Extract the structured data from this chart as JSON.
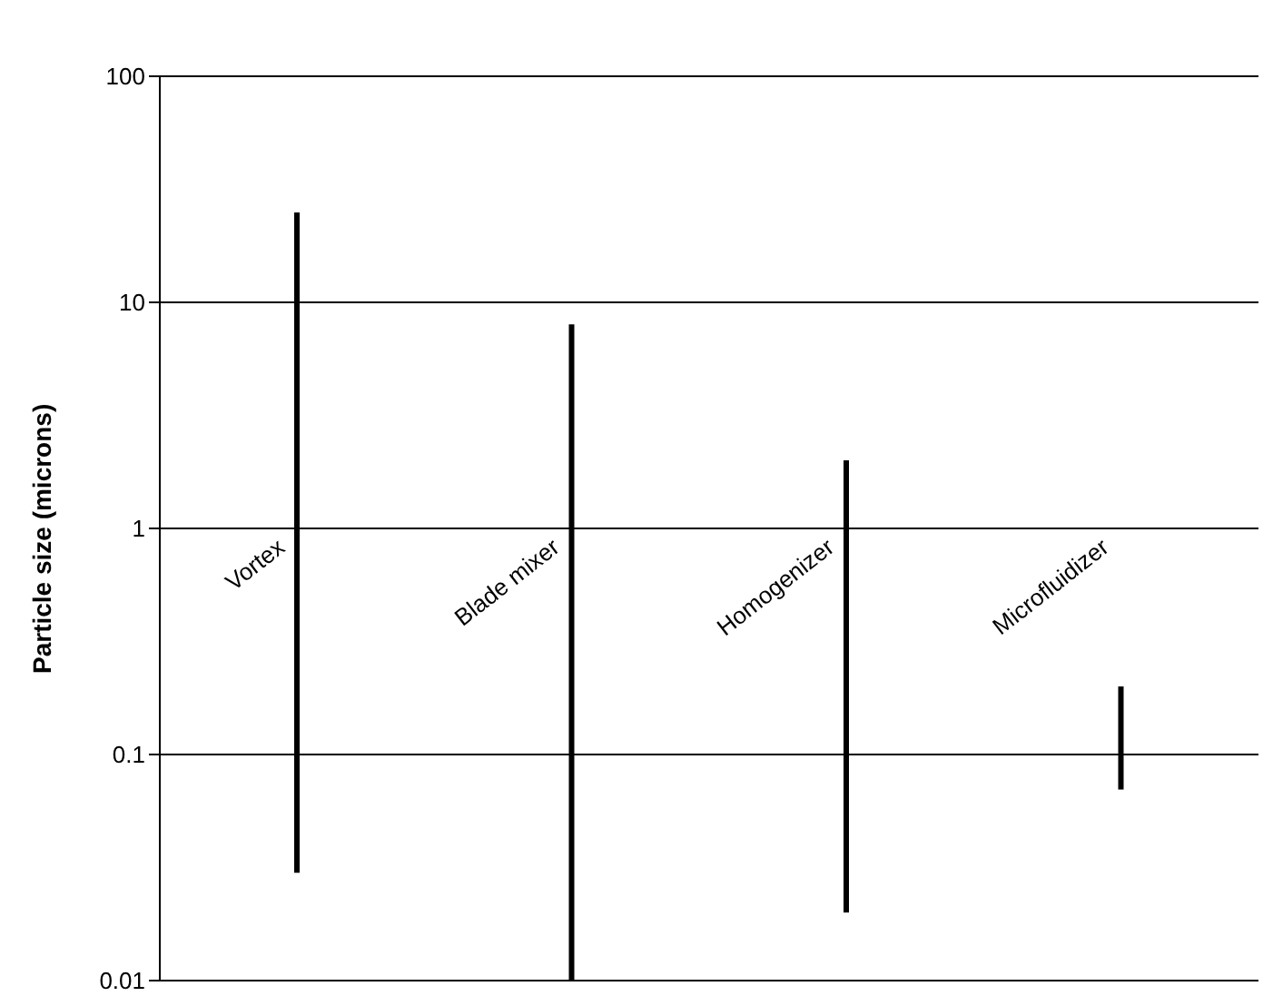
{
  "chart_data": {
    "type": "bar",
    "ylabel": "Particle size (microns)",
    "categories": [
      "Vortex",
      "Blade mixer",
      "Homogenizer",
      "Microfluidizer"
    ],
    "base": [
      0.03,
      0.01,
      0.02,
      0.07
    ],
    "values": [
      24.97,
      7.99,
      1.98,
      0.13
    ],
    "color": "#000000",
    "log": true,
    "ylim": [
      0.01,
      100
    ],
    "yticks": [
      0.01,
      0.1,
      1,
      10,
      100
    ],
    "grid": "y"
  }
}
